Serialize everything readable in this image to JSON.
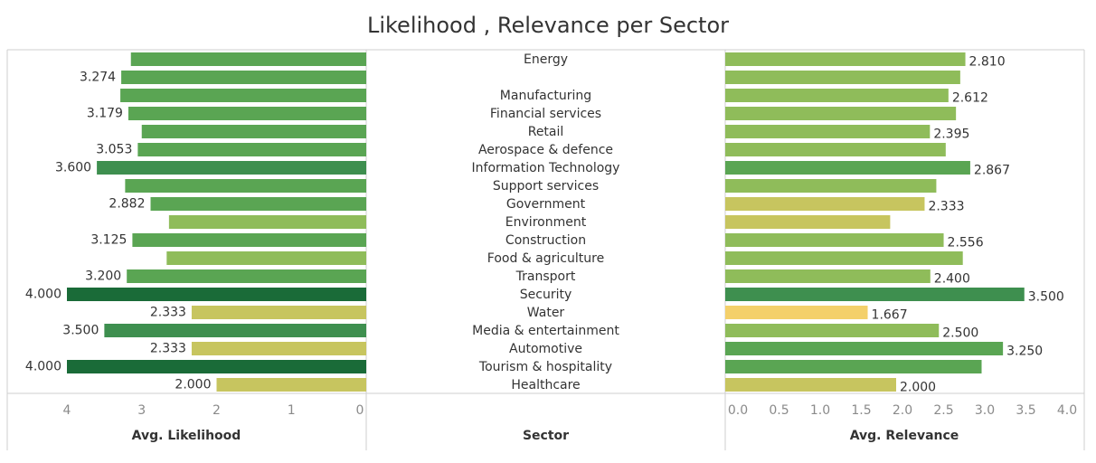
{
  "title": "Likelihood , Relevance per Sector",
  "colors": {
    "border": "#cfcfcf",
    "text": "#333333",
    "tick": "#8a8a8a"
  },
  "chart_data": {
    "type": "bar",
    "title": "Likelihood , Relevance per Sector",
    "column_title": "Sector",
    "categories": [
      "Energy",
      "",
      "Manufacturing",
      "Financial services",
      "Retail",
      "Aerospace & defence",
      "Information Technology",
      "Support services",
      "Government",
      "Environment",
      "Construction",
      "Food & agriculture",
      "Transport",
      "Security",
      "Water",
      "Media & entertainment",
      "Automotive",
      "Tourism & hospitality",
      "Healthcare"
    ],
    "series": [
      {
        "name": "Avg. Likelihood",
        "values": [
          3.145,
          3.274,
          3.286,
          3.179,
          3.0,
          3.053,
          3.6,
          3.222,
          2.882,
          2.636,
          3.125,
          2.667,
          3.2,
          4.0,
          2.333,
          3.5,
          2.333,
          4.0,
          2.0
        ],
        "labels": [
          "",
          "3.274",
          "",
          "3.179",
          "",
          "3.053",
          "3.600",
          "",
          "2.882",
          "",
          "3.125",
          "",
          "3.200",
          "4.000",
          "2.333",
          "3.500",
          "2.333",
          "4.000",
          "2.000"
        ],
        "xlabel": "Avg. Likelihood",
        "ticks": [
          "4",
          "3",
          "2",
          "1",
          "0"
        ],
        "tick_values": [
          4,
          3,
          2,
          1,
          0
        ],
        "xlim": [
          0,
          4.0
        ],
        "direction": "right-to-left"
      },
      {
        "name": "Avg. Relevance",
        "values": [
          2.81,
          2.75,
          2.612,
          2.7,
          2.395,
          2.58,
          2.867,
          2.47,
          2.333,
          1.93,
          2.556,
          2.78,
          2.4,
          3.5,
          1.667,
          2.5,
          3.25,
          3.0,
          2.0
        ],
        "labels": [
          "2.810",
          "",
          "2.612",
          "",
          "2.395",
          "",
          "2.867",
          "",
          "2.333",
          "",
          "2.556",
          "",
          "2.400",
          "3.500",
          "1.667",
          "2.500",
          "3.250",
          "",
          "2.000"
        ],
        "xlabel": "Avg. Relevance",
        "ticks": [
          "0.0",
          "0.5",
          "1.0",
          "1.5",
          "2.0",
          "2.5",
          "3.0",
          "3.5",
          "4.0"
        ],
        "tick_values": [
          0,
          0.5,
          1.0,
          1.5,
          2.0,
          2.5,
          3.0,
          3.5,
          4.0
        ],
        "xlim": [
          0,
          4.0
        ],
        "direction": "left-to-right"
      }
    ],
    "color_scale": [
      "#f4d06a",
      "#c7c55f",
      "#8fbc5a",
      "#5aa553",
      "#3e8f4f",
      "#1a6b38"
    ],
    "grid": false,
    "legend": "none"
  }
}
